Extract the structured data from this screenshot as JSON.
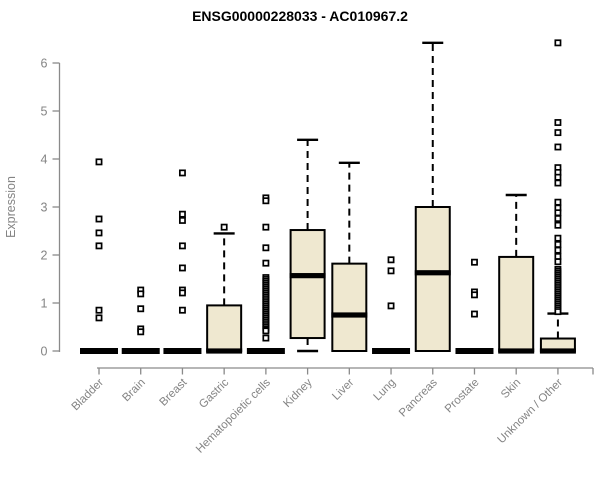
{
  "chart_data": {
    "type": "boxplot",
    "title": "ENSG00000228033 - AC010967.2",
    "xlabel": "",
    "ylabel": "Expression",
    "ylim": [
      0,
      6
    ],
    "yticks": [
      0,
      1,
      2,
      3,
      4,
      5,
      6
    ],
    "grid": false,
    "legend": false,
    "box_fill_color": "#EFE8D0",
    "box_line_color": "#000000",
    "axis_color": "#8a8a8a",
    "label_color": "#848484",
    "categories": [
      "Bladder",
      "Brain",
      "Breast",
      "Gastric",
      "Hematopoietic cells",
      "Kidney",
      "Liver",
      "Lung",
      "Pancreas",
      "Prostate",
      "Skin",
      "Unknown / Other"
    ],
    "series": [
      {
        "name": "Bladder",
        "min": 0,
        "q1": 0,
        "median": 0,
        "q3": 0,
        "max": 0,
        "outliers": [
          3.94,
          2.75,
          2.46,
          2.19,
          0.85,
          0.69
        ]
      },
      {
        "name": "Brain",
        "min": 0,
        "q1": 0,
        "median": 0,
        "q3": 0,
        "max": 0,
        "outliers": [
          1.27,
          1.19,
          0.88,
          0.46,
          0.4
        ]
      },
      {
        "name": "Breast",
        "min": 0,
        "q1": 0,
        "median": 0,
        "q3": 0,
        "max": 0,
        "outliers": [
          3.71,
          2.85,
          2.72,
          2.19,
          1.73,
          1.27,
          1.21,
          0.85
        ]
      },
      {
        "name": "Gastric",
        "min": 0,
        "q1": 0,
        "median": 0,
        "q3": 0.95,
        "max": 2.45,
        "outliers": [
          2.58
        ]
      },
      {
        "name": "Hematopoietic cells",
        "min": 0,
        "q1": 0,
        "median": 0,
        "q3": 0,
        "max": 0,
        "outliers": [
          3.19,
          3.13,
          2.58,
          2.15,
          1.83,
          1.53,
          1.49,
          1.45,
          1.41,
          1.37,
          1.33,
          1.29,
          1.25,
          1.21,
          1.17,
          1.13,
          1.09,
          1.05,
          1.01,
          0.97,
          0.93,
          0.89,
          0.85,
          0.81,
          0.77,
          0.73,
          0.69,
          0.65,
          0.61,
          0.57,
          0.53,
          0.49,
          0.45,
          0.42,
          0.27
        ]
      },
      {
        "name": "Kidney",
        "min": 0,
        "q1": 0.27,
        "median": 1.57,
        "q3": 2.52,
        "max": 4.4,
        "outliers": []
      },
      {
        "name": "Liver",
        "min": 0,
        "q1": 0,
        "median": 0.75,
        "q3": 1.82,
        "max": 3.92,
        "outliers": []
      },
      {
        "name": "Lung",
        "min": 0,
        "q1": 0,
        "median": 0,
        "q3": 0,
        "max": 0,
        "outliers": [
          1.9,
          1.67,
          0.94
        ]
      },
      {
        "name": "Pancreas",
        "min": 0,
        "q1": 0,
        "median": 1.63,
        "q3": 3.0,
        "max": 6.42,
        "outliers": []
      },
      {
        "name": "Prostate",
        "min": 0,
        "q1": 0,
        "median": 0,
        "q3": 0,
        "max": 0,
        "outliers": [
          1.85,
          1.23,
          1.17,
          0.77
        ]
      },
      {
        "name": "Skin",
        "min": 0,
        "q1": 0,
        "median": 0,
        "q3": 1.96,
        "max": 3.25,
        "outliers": []
      },
      {
        "name": "Unknown / Other",
        "min": 0,
        "q1": 0,
        "median": 0,
        "q3": 0.26,
        "max": 0.78,
        "outliers": [
          6.42,
          4.76,
          4.55,
          4.25,
          3.82,
          3.72,
          3.62,
          3.5,
          3.1,
          2.98,
          2.88,
          2.76,
          2.62,
          2.35,
          2.22,
          2.1,
          1.97,
          1.86,
          1.7,
          1.66,
          1.62,
          1.58,
          1.54,
          1.5,
          1.46,
          1.42,
          1.38,
          1.34,
          1.3,
          1.26,
          1.22,
          1.18,
          1.14,
          1.1,
          1.06,
          1.02,
          0.98,
          0.94,
          0.9,
          0.86,
          0.82
        ]
      }
    ]
  }
}
